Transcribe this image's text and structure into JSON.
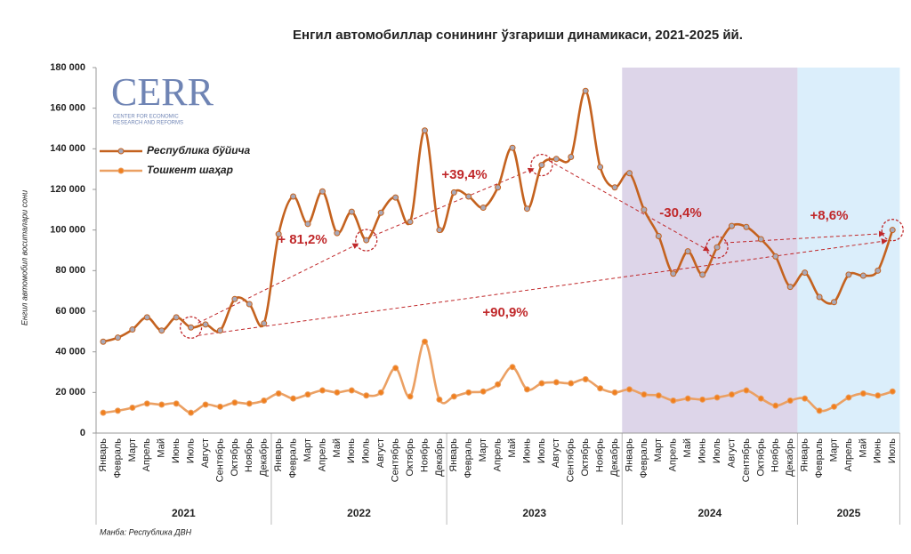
{
  "chart_data": {
    "type": "line",
    "title": "Енгил автомобиллар сонининг ўзгариши динамикаси, 2021-2025 йй.",
    "y_label": "Енгил автомобил воситалари сони",
    "source": "Манба: Республика ДВН",
    "logo": {
      "name": "CERR",
      "subtitle": [
        "CENTER FOR ECONOMIC",
        "RESEARCH AND REFORMS"
      ]
    },
    "categories": [
      "Январь",
      "Февраль",
      "Март",
      "Апрель",
      "Май",
      "Июнь",
      "Июль",
      "Август",
      "Сентябрь",
      "Октябрь",
      "Ноябрь",
      "Декабрь",
      "Январь",
      "Февраль",
      "Март",
      "Апрель",
      "Май",
      "Июнь",
      "Июль",
      "Август",
      "Сентябрь",
      "Октябрь",
      "Ноябрь",
      "Декабрь",
      "Январь",
      "Февраль",
      "Март",
      "Апрель",
      "Май",
      "Июнь",
      "Июль",
      "Август",
      "Сентябрь",
      "Октябрь",
      "Ноябрь",
      "Декабрь",
      "Январь",
      "Февраль",
      "Март",
      "Апрель",
      "Май",
      "Июнь",
      "Июль",
      "Август",
      "Сентябрь",
      "Октябрь",
      "Ноябрь",
      "Декабрь",
      "Январь",
      "Февраль",
      "Март",
      "Апрель",
      "Май",
      "Июнь",
      "Июль"
    ],
    "years": [
      {
        "label": "2021",
        "count": 12
      },
      {
        "label": "2022",
        "count": 12
      },
      {
        "label": "2023",
        "count": 12
      },
      {
        "label": "2024",
        "count": 12
      },
      {
        "label": "2025",
        "count": 7
      }
    ],
    "shading": {
      "2024": "#ddd5e9",
      "2025": "#dbeefb"
    },
    "series": [
      {
        "name": "Республика бўйича",
        "color": "#c4621f",
        "marker_color": "#a9a9b8",
        "values": [
          45000,
          47000,
          51000,
          57000,
          50500,
          57000,
          52000,
          53500,
          50500,
          66000,
          63500,
          54000,
          98000,
          116500,
          103000,
          119000,
          98500,
          109000,
          95000,
          108500,
          116000,
          104000,
          149000,
          100000,
          118500,
          116500,
          111000,
          121000,
          140500,
          110500,
          132000,
          135000,
          136000,
          168500,
          131000,
          121000,
          128000,
          110000,
          97000,
          78500,
          89500,
          78000,
          91500,
          102000,
          101500,
          95500,
          87000,
          72000,
          79000,
          67000,
          64500,
          78000,
          77500,
          80000,
          100000
        ]
      },
      {
        "name": "Тошкент шаҳар",
        "color": "#eba063",
        "marker_color": "#f07f1e",
        "values": [
          10000,
          11000,
          12500,
          14500,
          14000,
          14500,
          10000,
          14000,
          13000,
          15000,
          14500,
          16000,
          19500,
          17000,
          19000,
          21000,
          20000,
          21000,
          18500,
          20000,
          32000,
          18000,
          45000,
          16500,
          18000,
          20000,
          20500,
          24000,
          32500,
          21500,
          24500,
          25000,
          24500,
          26500,
          22000,
          20000,
          21500,
          19000,
          18500,
          16000,
          17000,
          16500,
          17500,
          19000,
          21000,
          17000,
          13500,
          16000,
          17000,
          11000,
          13000,
          17500,
          19500,
          18500,
          20500
        ]
      }
    ],
    "annotations": [
      "+ 81,2%",
      "+39,4%",
      "-30,4%",
      "+8,6%",
      "+90,9%"
    ],
    "annotation_color": "#c0282a",
    "ylim": [
      0,
      180000
    ],
    "yticks": [
      {
        "value": 0,
        "label": "0"
      },
      {
        "value": 20000,
        "label": "20 000"
      },
      {
        "value": 40000,
        "label": "40 000"
      },
      {
        "value": 60000,
        "label": "60 000"
      },
      {
        "value": 80000,
        "label": "80 000"
      },
      {
        "value": 100000,
        "label": "100 000"
      },
      {
        "value": 120000,
        "label": "120 000"
      },
      {
        "value": 140000,
        "label": "140 000"
      },
      {
        "value": 160000,
        "label": "160 000"
      },
      {
        "value": 180000,
        "label": "180 000"
      }
    ],
    "grid": false,
    "legend": "upper left"
  }
}
